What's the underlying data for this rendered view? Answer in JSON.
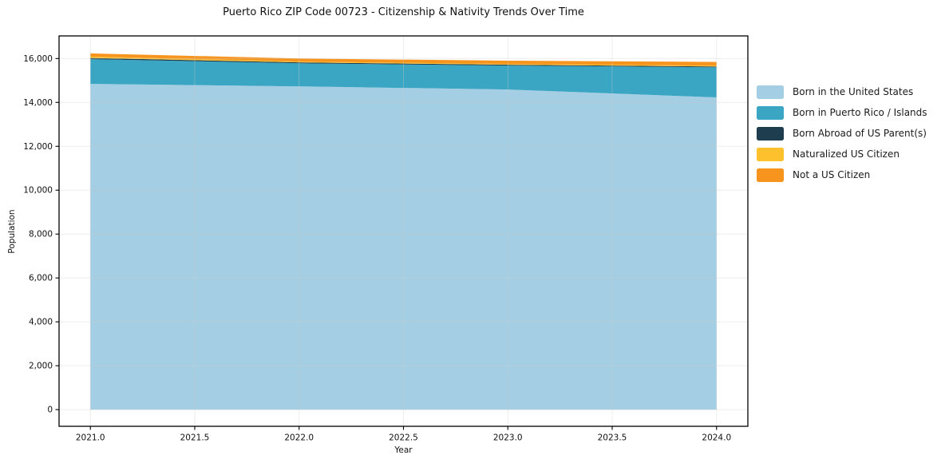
{
  "figure": {
    "background": "#ffffff",
    "frame_color": "#000000",
    "grid_color": "#cccccc",
    "text_color": "#111111"
  },
  "chart_data": {
    "type": "area",
    "stacked": true,
    "title": "Puerto Rico ZIP Code 00723 - Citizenship & Nativity Trends Over Time",
    "xlabel": "Year",
    "ylabel": "Population",
    "x": [
      2021,
      2022,
      2023,
      2024
    ],
    "series": [
      {
        "name": "Born in the United States",
        "color": "#a3cee3",
        "values": [
          14846,
          14731,
          14589,
          14228
        ]
      },
      {
        "name": "Born in Puerto Rico / Islands",
        "color": "#3ba6c4",
        "values": [
          1123,
          1052,
          1091,
          1372
        ]
      },
      {
        "name": "Born Abroad of US Parent(s)",
        "color": "#1e3d4f",
        "values": [
          57,
          41,
          38,
          34
        ]
      },
      {
        "name": "Naturalized US Citizen",
        "color": "#fcc12d",
        "values": [
          61,
          37,
          36,
          39
        ]
      },
      {
        "name": "Not a US Citizen",
        "color": "#f7941e",
        "values": [
          148,
          141,
          146,
          171
        ]
      }
    ],
    "totals": [
      16235,
      16002,
      15900,
      15844
    ],
    "xlim": [
      2020.85,
      2024.15
    ],
    "ylim": [
      -760,
      17030
    ],
    "xticks": [
      {
        "v": 2021.0,
        "label": "2021.0"
      },
      {
        "v": 2021.5,
        "label": "2021.5"
      },
      {
        "v": 2022.0,
        "label": "2022.0"
      },
      {
        "v": 2022.5,
        "label": "2022.5"
      },
      {
        "v": 2023.0,
        "label": "2023.0"
      },
      {
        "v": 2023.5,
        "label": "2023.5"
      },
      {
        "v": 2024.0,
        "label": "2024.0"
      }
    ],
    "yticks": [
      {
        "v": 0,
        "label": "0"
      },
      {
        "v": 2000,
        "label": "2,000"
      },
      {
        "v": 4000,
        "label": "4,000"
      },
      {
        "v": 6000,
        "label": "6,000"
      },
      {
        "v": 8000,
        "label": "8,000"
      },
      {
        "v": 10000,
        "label": "10,000"
      },
      {
        "v": 12000,
        "label": "12,000"
      },
      {
        "v": 14000,
        "label": "14,000"
      },
      {
        "v": 16000,
        "label": "16,000"
      }
    ],
    "grid": true,
    "legend_position": "right"
  }
}
